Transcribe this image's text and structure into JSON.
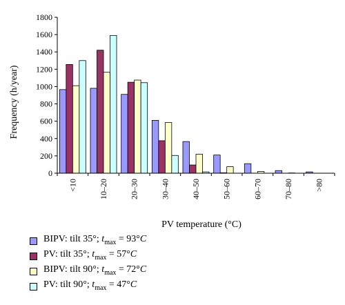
{
  "chart_data": {
    "type": "bar",
    "title": "",
    "xlabel": "PV temperature (°C)",
    "ylabel": "Frequency (h/year)",
    "ylim": [
      0,
      1800
    ],
    "yticks": [
      0,
      200,
      400,
      600,
      800,
      1000,
      1200,
      1400,
      1600,
      1800
    ],
    "grid": false,
    "legend_position": "bottom-left",
    "categories": [
      "<10",
      "10–20",
      "20–30",
      "30–40",
      "40–50",
      "50–60",
      "60–70",
      "70–80",
      ">80"
    ],
    "series": [
      {
        "name": "BIPV: tilt 35°; t_max = 93°C",
        "color": "#9999ff",
        "legend_label": "BIPV: tilt 35°; tmax = 93°C",
        "legend_parts": [
          "BIPV: tilt 35°; ",
          "t",
          "max",
          " = 93°",
          "C"
        ],
        "values": [
          965,
          980,
          910,
          610,
          365,
          210,
          110,
          30,
          15
        ]
      },
      {
        "name": "PV: tilt 35°; t_max = 57°C",
        "color": "#993366",
        "legend_label": "PV: tilt 35°; tmax = 57°C",
        "legend_parts": [
          "PV: tilt 35°; ",
          "t",
          "max",
          " = 57°",
          "C"
        ],
        "values": [
          1255,
          1420,
          1050,
          375,
          95,
          5,
          0,
          0,
          0
        ]
      },
      {
        "name": "BIPV: tilt 90°; t_max = 72°C",
        "color": "#ffffcc",
        "legend_label": "BIPV: tilt 90°; tmax = 72°C",
        "legend_parts": [
          "BIPV: tilt 90°; ",
          "t",
          "max",
          " = 72°",
          "C"
        ],
        "values": [
          1010,
          1165,
          1075,
          585,
          220,
          75,
          20,
          3,
          0
        ]
      },
      {
        "name": "PV: tilt 90°; t_max = 47°C",
        "color": "#ccffff",
        "legend_label": "PV: tilt 90°; tmax = 47°C",
        "legend_parts": [
          "PV: tilt 90°; ",
          "t",
          "max",
          " = 47°",
          "C"
        ],
        "values": [
          1300,
          1590,
          1045,
          205,
          15,
          0,
          0,
          0,
          0
        ]
      }
    ]
  }
}
